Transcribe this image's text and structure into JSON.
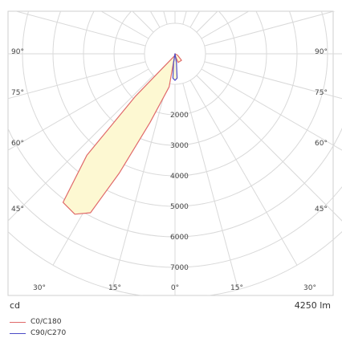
{
  "chart_data": {
    "type": "polar",
    "unit_label": "cd",
    "flux_label": "4250 lm",
    "radial_ticks": [
      2000,
      3000,
      4000,
      5000,
      6000,
      7000
    ],
    "radial_max": 8000,
    "angle_labels_side": [
      "90°",
      "75°",
      "60°",
      "45°"
    ],
    "angle_labels_bottom": [
      "30°",
      "15°",
      "0°",
      "15°",
      "30°"
    ],
    "series": [
      {
        "name": "C0/C180",
        "color": "#e06a6a",
        "fill": "#fdf8d2",
        "points": [
          {
            "angle": 0,
            "value": 0
          },
          {
            "angle": 10,
            "value": 1100
          },
          {
            "angle": 20,
            "value": 2400
          },
          {
            "angle": 25,
            "value": 4300
          },
          {
            "angle": 28,
            "value": 5900
          },
          {
            "angle": 32,
            "value": 6200
          },
          {
            "angle": 37,
            "value": 6100
          },
          {
            "angle": 41,
            "value": 4400
          },
          {
            "angle": 43,
            "value": 1900
          },
          {
            "angle": 41,
            "value": 650
          },
          {
            "angle": 0,
            "value": 50
          },
          {
            "angle": -20,
            "value": 300
          },
          {
            "angle": -45,
            "value": 300
          },
          {
            "angle": -60,
            "value": 100
          },
          {
            "angle": 0,
            "value": 0
          }
        ]
      },
      {
        "name": "C90/C270",
        "color": "#4b4bc7",
        "fill": "#fdf8d2",
        "points": [
          {
            "angle": 0,
            "value": 0
          },
          {
            "angle": 9,
            "value": 300
          },
          {
            "angle": 5,
            "value": 800
          },
          {
            "angle": 0,
            "value": 870
          },
          {
            "angle": -5,
            "value": 800
          },
          {
            "angle": -9,
            "value": 300
          },
          {
            "angle": 0,
            "value": 0
          }
        ]
      }
    ]
  }
}
